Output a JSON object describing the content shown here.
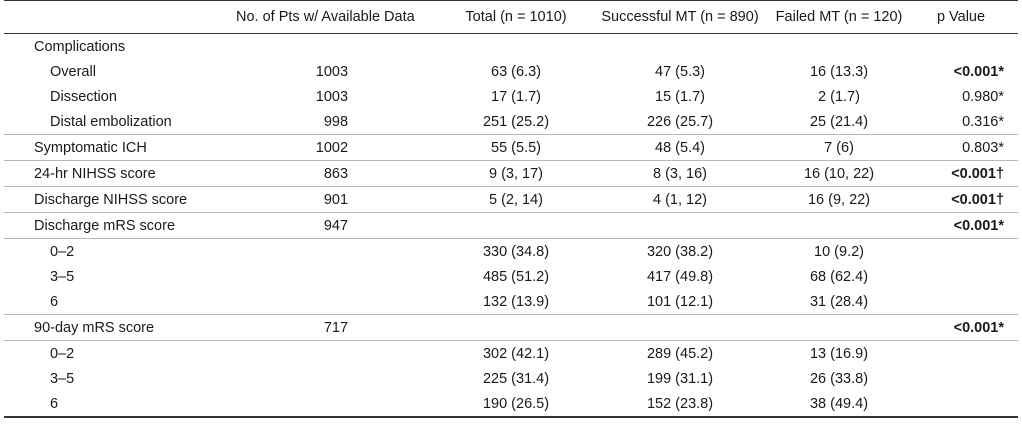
{
  "headers": {
    "label": "",
    "n": "No. of Pts w/ Available Data",
    "total": "Total (n = 1010)",
    "success": "Successful MT (n = 890)",
    "failed": "Failed MT (n = 120)",
    "p": "p Value"
  },
  "rows": [
    {
      "label": "Complications",
      "n": "",
      "total": "",
      "success": "",
      "failed": "",
      "p": "",
      "indent": 0,
      "sep": false,
      "bold": false
    },
    {
      "label": "Overall",
      "n": "1003",
      "total": "63 (6.3)",
      "success": "47 (5.3)",
      "failed": "16 (13.3)",
      "p": "<0.001*",
      "indent": 1,
      "sep": false,
      "bold": true
    },
    {
      "label": "Dissection",
      "n": "1003",
      "total": "17 (1.7)",
      "success": "15 (1.7)",
      "failed": "2 (1.7)",
      "p": "0.980*",
      "indent": 1,
      "sep": false,
      "bold": false
    },
    {
      "label": "Distal embolization",
      "n": "998",
      "total": "251 (25.2)",
      "success": "226 (25.7)",
      "failed": "25 (21.4)",
      "p": "0.316*",
      "indent": 1,
      "sep": false,
      "bold": false
    },
    {
      "label": "Symptomatic ICH",
      "n": "1002",
      "total": "55 (5.5)",
      "success": "48 (5.4)",
      "failed": "7 (6)",
      "p": "0.803*",
      "indent": 0,
      "sep": true,
      "bold": false
    },
    {
      "label": "24-hr NIHSS score",
      "n": "863",
      "total": "9 (3, 17)",
      "success": "8 (3, 16)",
      "failed": "16 (10, 22)",
      "p": "<0.001†",
      "indent": 0,
      "sep": true,
      "bold": true
    },
    {
      "label": "Discharge NIHSS score",
      "n": "901",
      "total": "5 (2, 14)",
      "success": "4 (1, 12)",
      "failed": "16 (9, 22)",
      "p": "<0.001†",
      "indent": 0,
      "sep": true,
      "bold": true
    },
    {
      "label": "Discharge mRS score",
      "n": "947",
      "total": "",
      "success": "",
      "failed": "",
      "p": "<0.001*",
      "indent": 0,
      "sep": true,
      "bold": true
    },
    {
      "label": "0–2",
      "n": "",
      "total": "330 (34.8)",
      "success": "320 (38.2)",
      "failed": "10 (9.2)",
      "p": "",
      "indent": 1,
      "sep": true,
      "bold": false
    },
    {
      "label": "3–5",
      "n": "",
      "total": "485 (51.2)",
      "success": "417 (49.8)",
      "failed": "68 (62.4)",
      "p": "",
      "indent": 1,
      "sep": false,
      "bold": false
    },
    {
      "label": "6",
      "n": "",
      "total": "132 (13.9)",
      "success": "101 (12.1)",
      "failed": "31 (28.4)",
      "p": "",
      "indent": 1,
      "sep": false,
      "bold": false
    },
    {
      "label": "90-day mRS score",
      "n": "717",
      "total": "",
      "success": "",
      "failed": "",
      "p": "<0.001*",
      "indent": 0,
      "sep": true,
      "bold": true
    },
    {
      "label": "0–2",
      "n": "",
      "total": "302 (42.1)",
      "success": "289 (45.2)",
      "failed": "13 (16.9)",
      "p": "",
      "indent": 1,
      "sep": true,
      "bold": false
    },
    {
      "label": "3–5",
      "n": "",
      "total": "225 (31.4)",
      "success": "199 (31.1)",
      "failed": "26 (33.8)",
      "p": "",
      "indent": 1,
      "sep": false,
      "bold": false
    },
    {
      "label": "6",
      "n": "",
      "total": "190 (26.5)",
      "success": "152 (23.8)",
      "failed": "38 (49.4)",
      "p": "",
      "indent": 1,
      "sep": false,
      "bold": false
    }
  ]
}
